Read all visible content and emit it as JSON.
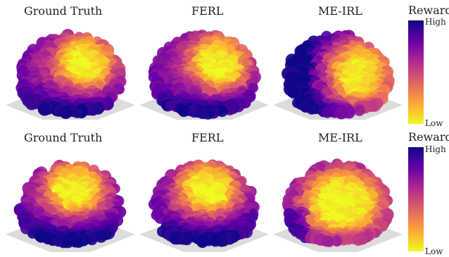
{
  "rows": [
    {
      "panels": [
        {
          "title": "Ground Truth",
          "hotspot": "upper-right"
        },
        {
          "title": "FERL",
          "hotspot": "upper-right"
        },
        {
          "title": "ME-IRL",
          "hotspot": "right"
        }
      ],
      "colorbar": {
        "title": "Reward",
        "high_label": "High",
        "low_label": "Low"
      }
    },
    {
      "panels": [
        {
          "title": "Ground Truth",
          "hotspot": "upper-center"
        },
        {
          "title": "FERL",
          "hotspot": "upper-center"
        },
        {
          "title": "ME-IRL",
          "hotspot": "broad"
        }
      ],
      "colorbar": {
        "title": "Reward",
        "high_label": "High",
        "low_label": "Low"
      }
    }
  ],
  "colors": {
    "high": "#f0f921",
    "mid_high": "#fca636",
    "mid": "#e16462",
    "mid_low": "#b12a90",
    "low": "#6a00a8",
    "lowest": "#0d0887",
    "floor": "#dcdcdc"
  },
  "colormap": "plasma"
}
